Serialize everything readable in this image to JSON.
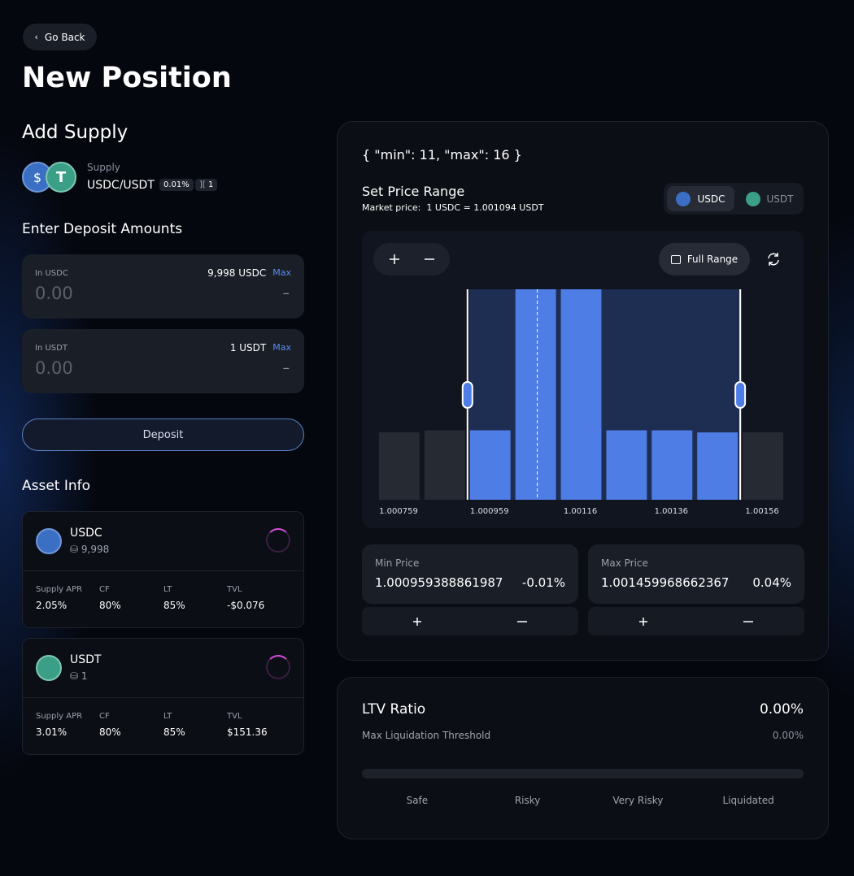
{
  "nav": {
    "back": "Go Back"
  },
  "title": "New Position",
  "supply": {
    "heading": "Add Supply",
    "label": "Supply",
    "pair": "USDC/USDT",
    "fee": "0.01%",
    "bins": "1"
  },
  "deposit": {
    "heading": "Enter Deposit Amounts",
    "inputs": [
      {
        "label": "In USDC",
        "balance": "9,998 USDC",
        "max": "Max",
        "placeholder": "0.00",
        "usd": "–"
      },
      {
        "label": "In USDT",
        "balance": "1 USDT",
        "max": "Max",
        "placeholder": "0.00",
        "usd": "–"
      }
    ],
    "button": "Deposit"
  },
  "asset_info": {
    "heading": "Asset Info",
    "assets": [
      {
        "name": "USDC",
        "amount": "9,998",
        "stats": [
          {
            "label": "Supply APR",
            "value": "2.05%"
          },
          {
            "label": "CF",
            "value": "80%"
          },
          {
            "label": "LT",
            "value": "85%"
          },
          {
            "label": "TVL",
            "value": "-$0.076"
          }
        ]
      },
      {
        "name": "USDT",
        "amount": "1",
        "stats": [
          {
            "label": "Supply APR",
            "value": "3.01%"
          },
          {
            "label": "CF",
            "value": "80%"
          },
          {
            "label": "LT",
            "value": "85%"
          },
          {
            "label": "TVL",
            "value": "$151.36"
          }
        ]
      }
    ]
  },
  "range": {
    "debug": "{ \"min\": 11, \"max\": 16 }",
    "heading": "Set Price Range",
    "market_label": "Market price:",
    "market_value": "1 USDC = 1.001094 USDT",
    "tokens": [
      "USDC",
      "USDT"
    ],
    "full_range": "Full Range",
    "chart": {
      "bars": [
        32,
        33,
        33,
        100,
        100,
        33,
        33,
        32,
        32
      ],
      "in_range": [
        false,
        false,
        true,
        true,
        true,
        true,
        true,
        true,
        false
      ],
      "ticks": [
        "1.000759",
        "1.000959",
        "1.00116",
        "1.00136",
        "1.00156"
      ]
    },
    "min": {
      "label": "Min Price",
      "value": "1.000959388861987",
      "change": "-0.01%"
    },
    "max": {
      "label": "Max Price",
      "value": "1.001459968662367",
      "change": "0.04%"
    }
  },
  "ltv": {
    "heading": "LTV Ratio",
    "value": "0.00%",
    "threshold_label": "Max Liquidation Threshold",
    "threshold_value": "0.00%",
    "levels": [
      "Safe",
      "Risky",
      "Very Risky",
      "Liquidated"
    ]
  }
}
